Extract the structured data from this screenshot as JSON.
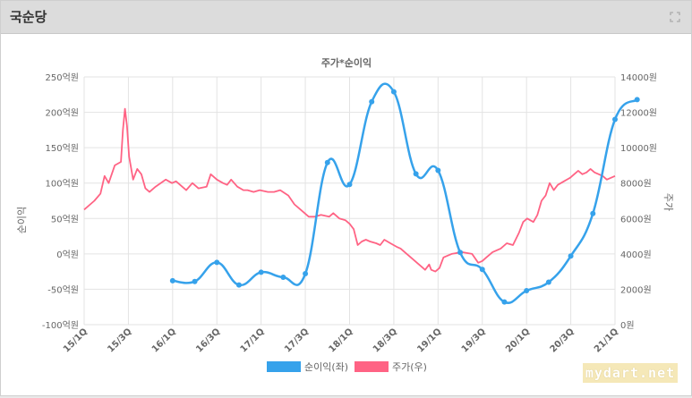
{
  "panel": {
    "title": "국순당"
  },
  "watermark": "mydart.net",
  "chart_data": {
    "type": "line",
    "title": "주가*순이익",
    "y_left": {
      "label": "순이익",
      "ticks": [
        "250억원",
        "200억원",
        "150억원",
        "100억원",
        "50억원",
        "0억원",
        "-50억원",
        "-100억원"
      ],
      "range": [
        -100,
        250
      ]
    },
    "y_right": {
      "label": "주가",
      "ticks": [
        "14000원",
        "12000원",
        "10000원",
        "8000원",
        "6000원",
        "4000원",
        "2000원",
        "0원"
      ],
      "range": [
        0,
        14000
      ]
    },
    "x_ticks": [
      "15/1Q",
      "15/3Q",
      "16/1Q",
      "16/3Q",
      "17/1Q",
      "17/3Q",
      "18/1Q",
      "18/3Q",
      "19/1Q",
      "19/3Q",
      "20/1Q",
      "20/3Q",
      "21/1Q"
    ],
    "series": [
      {
        "name": "순이익(좌)",
        "color": "#36a2eb",
        "axis": "left",
        "points": [
          [
            2,
            -38
          ],
          [
            2.5,
            -39
          ],
          [
            3,
            -12
          ],
          [
            3.5,
            -44
          ],
          [
            4,
            -26
          ],
          [
            4.5,
            -33
          ],
          [
            5,
            -28
          ],
          [
            5.5,
            129
          ],
          [
            6,
            98
          ],
          [
            6.5,
            215
          ],
          [
            7,
            229
          ],
          [
            7.5,
            113
          ],
          [
            8,
            118
          ],
          [
            8.5,
            2
          ],
          [
            9,
            -22
          ],
          [
            9.5,
            -68
          ],
          [
            10,
            -52
          ],
          [
            10.5,
            -40
          ],
          [
            11,
            -3
          ],
          [
            11.5,
            57
          ],
          [
            12,
            190
          ],
          [
            12.5,
            218
          ]
        ]
      },
      {
        "name": "주가(우)",
        "color": "#ff6384",
        "axis": "right",
        "points": [
          [
            0,
            6500
          ],
          [
            0.3,
            6800
          ],
          [
            0.5,
            7000
          ],
          [
            0.8,
            7400
          ],
          [
            1,
            8400
          ],
          [
            1.2,
            8000
          ],
          [
            1.5,
            9000
          ],
          [
            1.8,
            9200
          ],
          [
            1.9,
            11000
          ],
          [
            2,
            12200
          ],
          [
            2.1,
            11200
          ],
          [
            2.2,
            9500
          ],
          [
            2.4,
            8200
          ],
          [
            2.6,
            8800
          ],
          [
            2.8,
            8500
          ],
          [
            3,
            7700
          ],
          [
            3.2,
            7500
          ],
          [
            3.5,
            7800
          ],
          [
            4,
            8200
          ],
          [
            4.3,
            8000
          ],
          [
            4.5,
            8100
          ],
          [
            4.8,
            7800
          ],
          [
            5,
            7600
          ],
          [
            5.3,
            8000
          ],
          [
            5.6,
            7700
          ],
          [
            6,
            7800
          ],
          [
            6.2,
            8500
          ],
          [
            6.5,
            8200
          ],
          [
            6.8,
            8000
          ],
          [
            7,
            7900
          ],
          [
            7.2,
            8200
          ],
          [
            7.5,
            7800
          ],
          [
            7.8,
            7600
          ],
          [
            8,
            7600
          ],
          [
            8.3,
            7500
          ],
          [
            8.6,
            7600
          ],
          [
            9,
            7500
          ],
          [
            9.3,
            7500
          ],
          [
            9.6,
            7600
          ],
          [
            10,
            7300
          ],
          [
            10.3,
            6800
          ],
          [
            10.6,
            6500
          ],
          [
            11,
            6100
          ],
          [
            11.3,
            6100
          ],
          [
            11.6,
            6200
          ],
          [
            12,
            6100
          ],
          [
            12.2,
            6300
          ],
          [
            12.5,
            6000
          ],
          [
            12.8,
            5900
          ],
          [
            13,
            5700
          ],
          [
            13.2,
            5400
          ],
          [
            13.4,
            4500
          ],
          [
            13.6,
            4700
          ],
          [
            13.8,
            4800
          ],
          [
            14,
            4700
          ],
          [
            14.3,
            4600
          ],
          [
            14.5,
            4500
          ],
          [
            14.7,
            4800
          ],
          [
            15,
            4600
          ],
          [
            15.3,
            4400
          ],
          [
            15.5,
            4300
          ],
          [
            15.8,
            4000
          ],
          [
            16,
            3800
          ],
          [
            16.3,
            3500
          ],
          [
            16.5,
            3300
          ],
          [
            16.7,
            3100
          ],
          [
            16.9,
            3400
          ],
          [
            17,
            3100
          ],
          [
            17.2,
            3000
          ],
          [
            17.4,
            3200
          ],
          [
            17.6,
            3800
          ],
          [
            18,
            4000
          ],
          [
            18.5,
            4100
          ],
          [
            19,
            4000
          ],
          [
            19.3,
            3500
          ],
          [
            19.5,
            3600
          ],
          [
            19.7,
            3800
          ],
          [
            20,
            4100
          ],
          [
            20.4,
            4300
          ],
          [
            20.7,
            4600
          ],
          [
            21,
            4500
          ],
          [
            21.3,
            5200
          ],
          [
            21.5,
            5800
          ],
          [
            21.7,
            6000
          ],
          [
            22,
            5800
          ],
          [
            22.2,
            6200
          ],
          [
            22.4,
            7000
          ],
          [
            22.6,
            7300
          ],
          [
            22.8,
            8000
          ],
          [
            23,
            7600
          ],
          [
            23.2,
            7900
          ],
          [
            23.5,
            8100
          ],
          [
            23.8,
            8300
          ],
          [
            24,
            8500
          ],
          [
            24.2,
            8700
          ],
          [
            24.4,
            8500
          ],
          [
            24.6,
            8600
          ],
          [
            24.8,
            8800
          ],
          [
            25,
            8600
          ],
          [
            25.2,
            8500
          ],
          [
            25.4,
            8400
          ],
          [
            25.6,
            8200
          ],
          [
            25.8,
            8300
          ],
          [
            26,
            8400
          ]
        ]
      }
    ],
    "legend": "bottom"
  }
}
